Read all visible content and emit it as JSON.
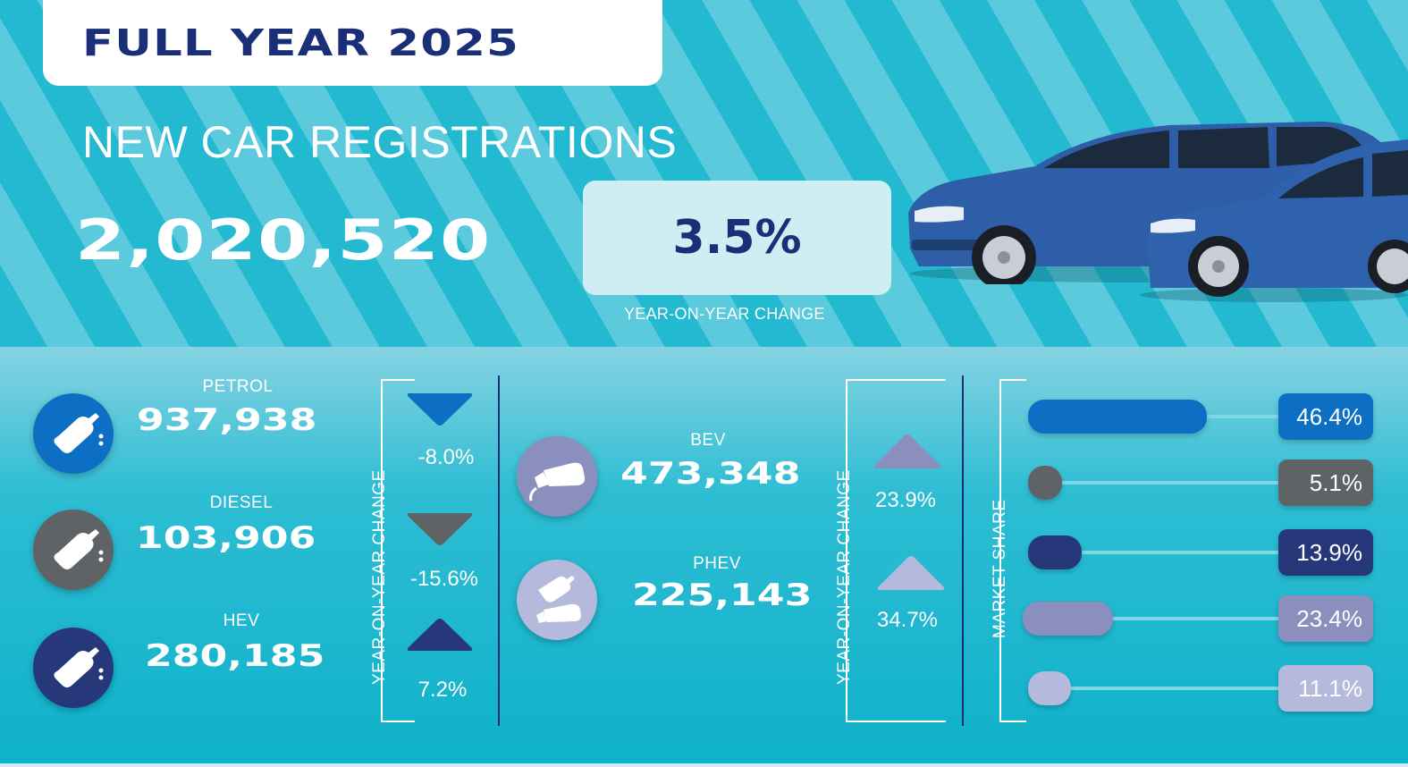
{
  "header": {
    "title": "FULL YEAR 2025",
    "subtitle": "NEW CAR REGISTRATIONS",
    "total": "2,020,520",
    "yoy_change": "3.5%",
    "yoy_caption": "YEAR-ON-YEAR CHANGE"
  },
  "fuels_left": [
    {
      "label": "PETROL",
      "value": "937,938",
      "change": "-8.0%",
      "direction": "down",
      "color": "#0d6fc4"
    },
    {
      "label": "DIESEL",
      "value": "103,906",
      "change": "-15.6%",
      "direction": "down",
      "color": "#5f6366"
    },
    {
      "label": "HEV",
      "value": "280,185",
      "change": "7.2%",
      "direction": "up",
      "color": "#26377a"
    }
  ],
  "fuels_right": [
    {
      "label": "BEV",
      "value": "473,348",
      "change": "23.9%",
      "direction": "up",
      "color": "#8a8fbd"
    },
    {
      "label": "PHEV",
      "value": "225,143",
      "change": "34.7%",
      "direction": "up",
      "color": "#b5b9db"
    }
  ],
  "yoy_axis_label": "YEAR-ON-YEAR CHANGE",
  "market_share": {
    "label": "MARKET SHARE",
    "items": [
      {
        "share": "46.4%",
        "value": 46.4,
        "color": "#0d6fc4"
      },
      {
        "share": "5.1%",
        "value": 5.1,
        "color": "#5f6366"
      },
      {
        "share": "13.9%",
        "value": 13.9,
        "color": "#26377a"
      },
      {
        "share": "23.4%",
        "value": 23.4,
        "color": "#8a8fbd"
      },
      {
        "share": "11.1%",
        "value": 11.1,
        "color": "#b5b9db"
      }
    ]
  }
}
